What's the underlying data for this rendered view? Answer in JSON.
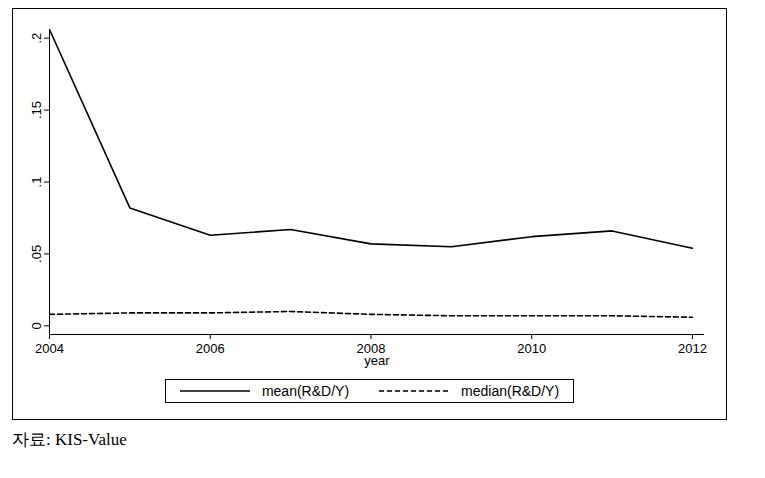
{
  "chart_data": {
    "type": "line",
    "x": [
      2004,
      2005,
      2006,
      2007,
      2008,
      2009,
      2010,
      2011,
      2012
    ],
    "series": [
      {
        "name": "mean(R&D/Y)",
        "color": "#000000",
        "line_style": "solid",
        "values": [
          0.206,
          0.082,
          0.063,
          0.067,
          0.057,
          0.055,
          0.062,
          0.066,
          0.054
        ]
      },
      {
        "name": "median(R&D/Y)",
        "color": "#000000",
        "line_style": "dashed",
        "values": [
          0.008,
          0.009,
          0.009,
          0.01,
          0.008,
          0.007,
          0.007,
          0.007,
          0.006
        ]
      }
    ],
    "x_label": "year",
    "xlim": [
      2004,
      2012.15
    ],
    "xticks": [
      2004,
      2006,
      2008,
      2010,
      2012
    ],
    "ylim": [
      -0.006,
      0.206
    ],
    "yticks": [
      0,
      {
        "value": 0.05,
        "label": ".05"
      },
      {
        "value": 0.1,
        "label": ".1"
      },
      {
        "value": 0.15,
        "label": ".15"
      },
      {
        "value": 0.2,
        "label": ".2"
      }
    ],
    "grid": false,
    "legend": "bottom",
    "caption": "자료: KIS-Value"
  }
}
